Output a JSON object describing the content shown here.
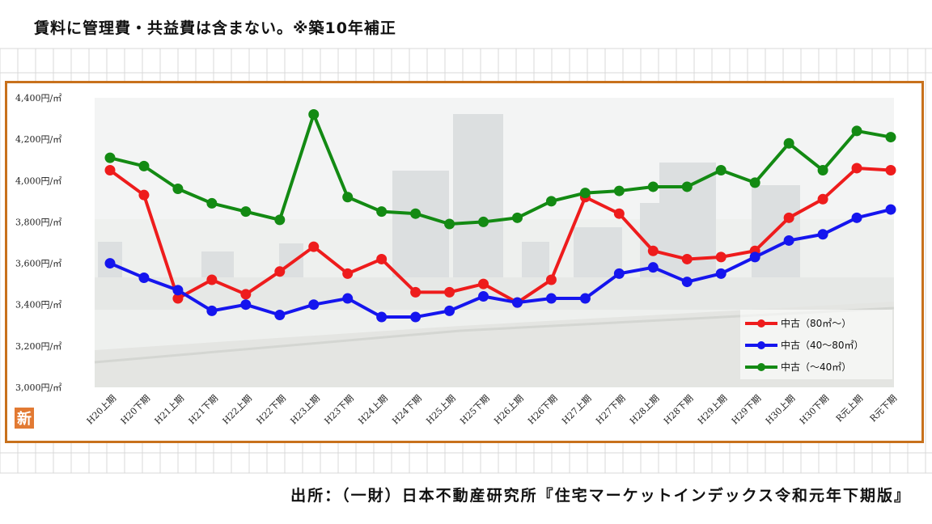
{
  "header": {
    "note": "賃料に管理費・共益費は含まない。※築10年補正"
  },
  "footer": {
    "source": "出所：（一財）日本不動産研究所『住宅マーケットインデックス令和元年下期版』"
  },
  "logo": {
    "text": "新"
  },
  "colors": {
    "frame": "#c8711c",
    "red": "#ee1c1c",
    "blue": "#1515ee",
    "green": "#138a13",
    "logo": "#e27a33"
  },
  "chart_data": {
    "type": "line",
    "categories": [
      "H20上期",
      "H20下期",
      "H21上期",
      "H21下期",
      "H22上期",
      "H22下期",
      "H23上期",
      "H23下期",
      "H24上期",
      "H24下期",
      "H25上期",
      "H25下期",
      "H26上期",
      "H26下期",
      "H27上期",
      "H27下期",
      "H28上期",
      "H28下期",
      "H29上期",
      "H29下期",
      "H30上期",
      "H30下期",
      "R元上期",
      "R元下期"
    ],
    "ylim": [
      3000,
      4400
    ],
    "yticks": [
      3000,
      3200,
      3400,
      3600,
      3800,
      4000,
      4200,
      4400
    ],
    "ytick_labels": [
      "3,000円/㎡",
      "3,200円/㎡",
      "3,400円/㎡",
      "3,600円/㎡",
      "3,800円/㎡",
      "4,000円/㎡",
      "4,200円/㎡",
      "4,400円/㎡"
    ],
    "legend_position": "bottom-right",
    "series": [
      {
        "name": "中古（80㎡～）",
        "color": "#ee1c1c",
        "values": [
          4050,
          3930,
          3430,
          3520,
          3450,
          3560,
          3680,
          3550,
          3620,
          3460,
          3460,
          3500,
          3410,
          3520,
          3920,
          3840,
          3660,
          3620,
          3630,
          3660,
          3820,
          3910,
          4060,
          4050
        ]
      },
      {
        "name": "中古（40～80㎡）",
        "color": "#1515ee",
        "values": [
          3600,
          3530,
          3470,
          3370,
          3400,
          3350,
          3400,
          3430,
          3340,
          3340,
          3370,
          3440,
          3410,
          3430,
          3430,
          3550,
          3580,
          3510,
          3550,
          3630,
          3710,
          3740,
          3820,
          3860
        ]
      },
      {
        "name": "中古（～40㎡）",
        "color": "#138a13",
        "values": [
          4110,
          4070,
          3960,
          3890,
          3850,
          3810,
          4320,
          3920,
          3850,
          3840,
          3790,
          3800,
          3820,
          3900,
          3940,
          3950,
          3970,
          3970,
          4050,
          3990,
          4180,
          4050,
          4240,
          4210
        ]
      }
    ]
  }
}
